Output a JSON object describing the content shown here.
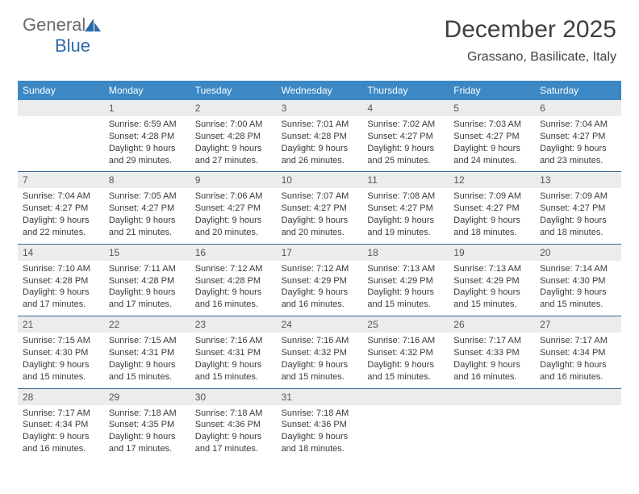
{
  "brand": {
    "word1": "General",
    "word2": "Blue"
  },
  "title": "December 2025",
  "subtitle": "Grassano, Basilicate, Italy",
  "colors": {
    "header_bg": "#3b88c4",
    "header_text": "#ffffff",
    "date_bg": "#ececec",
    "rule": "#2f6aa0",
    "text": "#3a3a3a",
    "brand_gray": "#6a6a6a",
    "brand_blue": "#2b6aa8"
  },
  "day_names": [
    "Sunday",
    "Monday",
    "Tuesday",
    "Wednesday",
    "Thursday",
    "Friday",
    "Saturday"
  ],
  "weeks": [
    [
      {
        "date": "",
        "sunrise": "",
        "sunset": "",
        "daylight": ""
      },
      {
        "date": "1",
        "sunrise": "Sunrise: 6:59 AM",
        "sunset": "Sunset: 4:28 PM",
        "daylight": "Daylight: 9 hours and 29 minutes."
      },
      {
        "date": "2",
        "sunrise": "Sunrise: 7:00 AM",
        "sunset": "Sunset: 4:28 PM",
        "daylight": "Daylight: 9 hours and 27 minutes."
      },
      {
        "date": "3",
        "sunrise": "Sunrise: 7:01 AM",
        "sunset": "Sunset: 4:28 PM",
        "daylight": "Daylight: 9 hours and 26 minutes."
      },
      {
        "date": "4",
        "sunrise": "Sunrise: 7:02 AM",
        "sunset": "Sunset: 4:27 PM",
        "daylight": "Daylight: 9 hours and 25 minutes."
      },
      {
        "date": "5",
        "sunrise": "Sunrise: 7:03 AM",
        "sunset": "Sunset: 4:27 PM",
        "daylight": "Daylight: 9 hours and 24 minutes."
      },
      {
        "date": "6",
        "sunrise": "Sunrise: 7:04 AM",
        "sunset": "Sunset: 4:27 PM",
        "daylight": "Daylight: 9 hours and 23 minutes."
      }
    ],
    [
      {
        "date": "7",
        "sunrise": "Sunrise: 7:04 AM",
        "sunset": "Sunset: 4:27 PM",
        "daylight": "Daylight: 9 hours and 22 minutes."
      },
      {
        "date": "8",
        "sunrise": "Sunrise: 7:05 AM",
        "sunset": "Sunset: 4:27 PM",
        "daylight": "Daylight: 9 hours and 21 minutes."
      },
      {
        "date": "9",
        "sunrise": "Sunrise: 7:06 AM",
        "sunset": "Sunset: 4:27 PM",
        "daylight": "Daylight: 9 hours and 20 minutes."
      },
      {
        "date": "10",
        "sunrise": "Sunrise: 7:07 AM",
        "sunset": "Sunset: 4:27 PM",
        "daylight": "Daylight: 9 hours and 20 minutes."
      },
      {
        "date": "11",
        "sunrise": "Sunrise: 7:08 AM",
        "sunset": "Sunset: 4:27 PM",
        "daylight": "Daylight: 9 hours and 19 minutes."
      },
      {
        "date": "12",
        "sunrise": "Sunrise: 7:09 AM",
        "sunset": "Sunset: 4:27 PM",
        "daylight": "Daylight: 9 hours and 18 minutes."
      },
      {
        "date": "13",
        "sunrise": "Sunrise: 7:09 AM",
        "sunset": "Sunset: 4:27 PM",
        "daylight": "Daylight: 9 hours and 18 minutes."
      }
    ],
    [
      {
        "date": "14",
        "sunrise": "Sunrise: 7:10 AM",
        "sunset": "Sunset: 4:28 PM",
        "daylight": "Daylight: 9 hours and 17 minutes."
      },
      {
        "date": "15",
        "sunrise": "Sunrise: 7:11 AM",
        "sunset": "Sunset: 4:28 PM",
        "daylight": "Daylight: 9 hours and 17 minutes."
      },
      {
        "date": "16",
        "sunrise": "Sunrise: 7:12 AM",
        "sunset": "Sunset: 4:28 PM",
        "daylight": "Daylight: 9 hours and 16 minutes."
      },
      {
        "date": "17",
        "sunrise": "Sunrise: 7:12 AM",
        "sunset": "Sunset: 4:29 PM",
        "daylight": "Daylight: 9 hours and 16 minutes."
      },
      {
        "date": "18",
        "sunrise": "Sunrise: 7:13 AM",
        "sunset": "Sunset: 4:29 PM",
        "daylight": "Daylight: 9 hours and 15 minutes."
      },
      {
        "date": "19",
        "sunrise": "Sunrise: 7:13 AM",
        "sunset": "Sunset: 4:29 PM",
        "daylight": "Daylight: 9 hours and 15 minutes."
      },
      {
        "date": "20",
        "sunrise": "Sunrise: 7:14 AM",
        "sunset": "Sunset: 4:30 PM",
        "daylight": "Daylight: 9 hours and 15 minutes."
      }
    ],
    [
      {
        "date": "21",
        "sunrise": "Sunrise: 7:15 AM",
        "sunset": "Sunset: 4:30 PM",
        "daylight": "Daylight: 9 hours and 15 minutes."
      },
      {
        "date": "22",
        "sunrise": "Sunrise: 7:15 AM",
        "sunset": "Sunset: 4:31 PM",
        "daylight": "Daylight: 9 hours and 15 minutes."
      },
      {
        "date": "23",
        "sunrise": "Sunrise: 7:16 AM",
        "sunset": "Sunset: 4:31 PM",
        "daylight": "Daylight: 9 hours and 15 minutes."
      },
      {
        "date": "24",
        "sunrise": "Sunrise: 7:16 AM",
        "sunset": "Sunset: 4:32 PM",
        "daylight": "Daylight: 9 hours and 15 minutes."
      },
      {
        "date": "25",
        "sunrise": "Sunrise: 7:16 AM",
        "sunset": "Sunset: 4:32 PM",
        "daylight": "Daylight: 9 hours and 15 minutes."
      },
      {
        "date": "26",
        "sunrise": "Sunrise: 7:17 AM",
        "sunset": "Sunset: 4:33 PM",
        "daylight": "Daylight: 9 hours and 16 minutes."
      },
      {
        "date": "27",
        "sunrise": "Sunrise: 7:17 AM",
        "sunset": "Sunset: 4:34 PM",
        "daylight": "Daylight: 9 hours and 16 minutes."
      }
    ],
    [
      {
        "date": "28",
        "sunrise": "Sunrise: 7:17 AM",
        "sunset": "Sunset: 4:34 PM",
        "daylight": "Daylight: 9 hours and 16 minutes."
      },
      {
        "date": "29",
        "sunrise": "Sunrise: 7:18 AM",
        "sunset": "Sunset: 4:35 PM",
        "daylight": "Daylight: 9 hours and 17 minutes."
      },
      {
        "date": "30",
        "sunrise": "Sunrise: 7:18 AM",
        "sunset": "Sunset: 4:36 PM",
        "daylight": "Daylight: 9 hours and 17 minutes."
      },
      {
        "date": "31",
        "sunrise": "Sunrise: 7:18 AM",
        "sunset": "Sunset: 4:36 PM",
        "daylight": "Daylight: 9 hours and 18 minutes."
      },
      {
        "date": "",
        "sunrise": "",
        "sunset": "",
        "daylight": ""
      },
      {
        "date": "",
        "sunrise": "",
        "sunset": "",
        "daylight": ""
      },
      {
        "date": "",
        "sunrise": "",
        "sunset": "",
        "daylight": ""
      }
    ]
  ]
}
